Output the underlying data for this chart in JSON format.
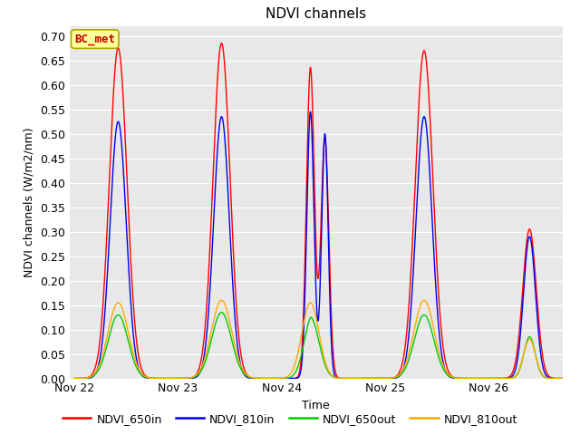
{
  "title": "NDVI channels",
  "ylabel": "NDVI channels (W/m2/nm)",
  "xlabel": "Time",
  "ylim": [
    0.0,
    0.72
  ],
  "plot_bg": "#e8e8e8",
  "fig_bg": "#ffffff",
  "annotation_text": "BC_met",
  "annotation_color": "#cc0000",
  "annotation_bg": "#ffff99",
  "annotation_border": "#aaaa00",
  "colors": {
    "NDVI_650in": "#ff0000",
    "NDVI_810in": "#0000ee",
    "NDVI_650out": "#00cc00",
    "NDVI_810out": "#ffaa00"
  },
  "grid_color": "#ffffff",
  "grid_linewidth": 0.8,
  "title_fontsize": 11,
  "tick_fontsize": 9,
  "ylabel_fontsize": 9,
  "xlabel_fontsize": 9,
  "legend_fontsize": 9
}
